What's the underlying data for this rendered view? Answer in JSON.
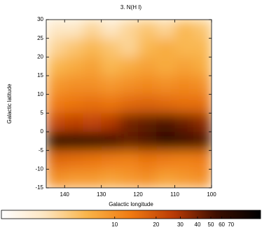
{
  "chart_data": {
    "type": "heatmap",
    "title": "3. N(H I)",
    "xlabel": "Galactic longitude",
    "ylabel": "Galactic latitude",
    "xbins": [
      145,
      140,
      135,
      130,
      125,
      120,
      115,
      110,
      105,
      100
    ],
    "ybins": [
      30,
      25,
      20,
      15,
      10,
      5,
      0,
      -5,
      -10,
      -15
    ],
    "values": [
      [
        3,
        3,
        4,
        3,
        4,
        5,
        4,
        6,
        5
      ],
      [
        4,
        5,
        6,
        5,
        4,
        6,
        7,
        6,
        6
      ],
      [
        6,
        7,
        8,
        6,
        7,
        8,
        7,
        8,
        7
      ],
      [
        9,
        10,
        10,
        9,
        10,
        11,
        10,
        11,
        10
      ],
      [
        13,
        14,
        15,
        14,
        16,
        17,
        16,
        15,
        15
      ],
      [
        22,
        25,
        24,
        28,
        40,
        45,
        50,
        42,
        35
      ],
      [
        75,
        70,
        68,
        55,
        45,
        50,
        65,
        55,
        50
      ],
      [
        16,
        15,
        14,
        13,
        12,
        14,
        13,
        12,
        13
      ],
      [
        10,
        9,
        9,
        8,
        9,
        10,
        8,
        9,
        10
      ]
    ],
    "xlim": [
      145,
      100
    ],
    "ylim": [
      -15,
      30
    ],
    "xticks": [
      140,
      130,
      120,
      110,
      100
    ],
    "yticks": [
      -15,
      -10,
      -5,
      0,
      5,
      10,
      15,
      20,
      25,
      30
    ],
    "colormap": [
      "#ffffff",
      "#fde6c2",
      "#f9b347",
      "#f07a12",
      "#b83a05",
      "#3a0d00",
      "#000000"
    ],
    "colorbar": {
      "lim": [
        1.5,
        115
      ],
      "log": true,
      "ticks": [
        10,
        20,
        30,
        40,
        50,
        60,
        70
      ]
    }
  }
}
